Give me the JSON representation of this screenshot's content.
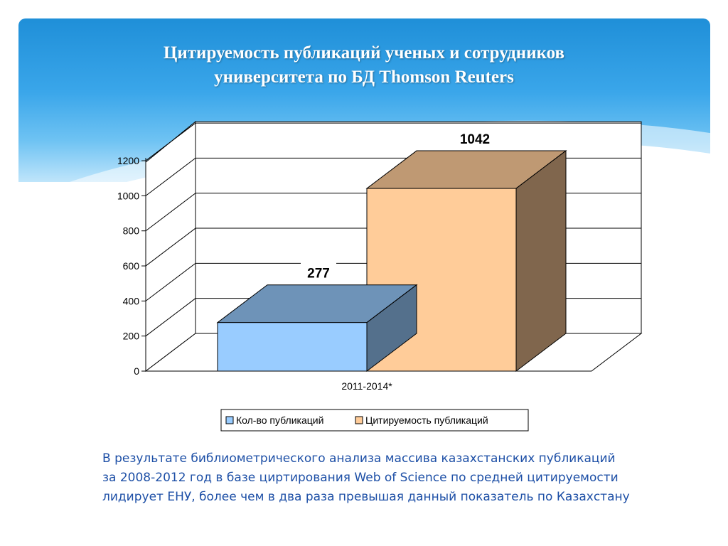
{
  "title": {
    "line1": "Цитируемость публикаций ученых и сотрудников",
    "line2": "университета по БД Thomson Reuters"
  },
  "chart_data": {
    "type": "bar",
    "categories": [
      "2011-2014*"
    ],
    "series": [
      {
        "name": "Кол-во публикаций",
        "values": [
          277
        ],
        "color": "#99ccff"
      },
      {
        "name": "Цитируемость публикаций",
        "values": [
          1042
        ],
        "color": "#ffcc99"
      }
    ],
    "ylim": [
      0,
      1200
    ],
    "yticks": [
      0,
      200,
      400,
      600,
      800,
      1000,
      1200
    ],
    "grid": true,
    "legend": "bottom",
    "three_d": true
  },
  "caption": {
    "line1": "В результате библиометрического анализа массива казахстанских публикаций",
    "line2": "за 2008-2012 год в базе циртирования Web of Science по средней цитируемости",
    "line3": "лидирует ЕНУ, более чем в два раза превышая данный показатель по Казахстану"
  }
}
